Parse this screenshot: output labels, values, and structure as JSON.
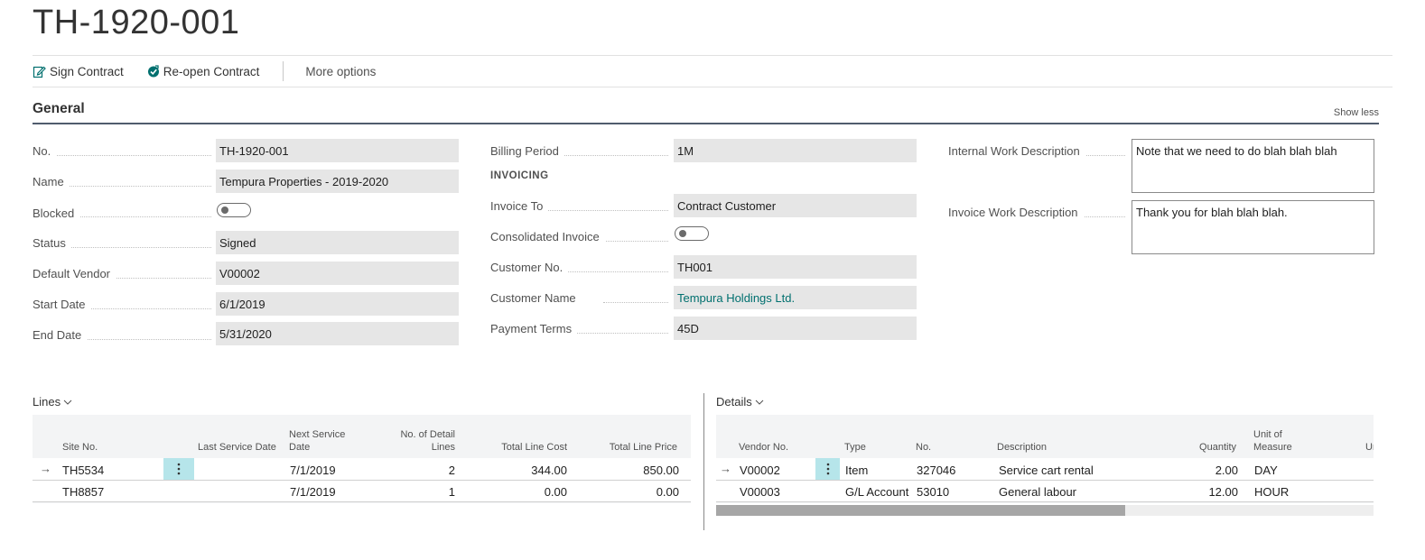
{
  "page": {
    "title": "TH-1920-001"
  },
  "actions": {
    "sign_contract": "Sign Contract",
    "reopen_contract": "Re-open Contract",
    "more_options": "More options"
  },
  "general": {
    "title": "General",
    "show_less": "Show less",
    "left": {
      "no": {
        "label": "No.",
        "value": "TH-1920-001"
      },
      "name": {
        "label": "Name",
        "value": "Tempura Properties - 2019-2020"
      },
      "blocked": {
        "label": "Blocked",
        "value": false
      },
      "status": {
        "label": "Status",
        "value": "Signed"
      },
      "default_vendor": {
        "label": "Default Vendor",
        "value": "V00002"
      },
      "start_date": {
        "label": "Start Date",
        "value": "6/1/2019"
      },
      "end_date": {
        "label": "End Date",
        "value": "5/31/2020"
      }
    },
    "middle": {
      "billing_period": {
        "label": "Billing Period",
        "value": "1M"
      },
      "invoicing_header": "INVOICING",
      "invoice_to": {
        "label": "Invoice To",
        "value": "Contract Customer"
      },
      "consolidated_invoice": {
        "label": "Consolidated Invoice",
        "value": false
      },
      "customer_no": {
        "label": "Customer No.",
        "value": "TH001"
      },
      "customer_name": {
        "label": "Customer Name",
        "value": "Tempura Holdings Ltd."
      },
      "payment_terms": {
        "label": "Payment Terms",
        "value": "45D"
      }
    },
    "right": {
      "internal_work_description": {
        "label": "Internal Work Description",
        "value": "Note that we need to do blah blah blah"
      },
      "invoice_work_description": {
        "label": "Invoice Work Description",
        "value": "Thank you for blah blah blah."
      }
    }
  },
  "lines": {
    "title": "Lines",
    "headers": {
      "site_no": "Site No.",
      "last_service_date": "Last Service Date",
      "next_service_date_1": "Next Service",
      "next_service_date_2": "Date",
      "no_detail_lines_1": "No. of Detail",
      "no_detail_lines_2": "Lines",
      "total_line_cost": "Total Line Cost",
      "total_line_price": "Total Line Price"
    },
    "rows": [
      {
        "site_no": "TH5534",
        "last_service_date": "",
        "next_service_date": "7/1/2019",
        "no_detail_lines": "2",
        "total_line_cost": "344.00",
        "total_line_price": "850.00",
        "selected": true
      },
      {
        "site_no": "TH8857",
        "last_service_date": "",
        "next_service_date": "7/1/2019",
        "no_detail_lines": "1",
        "total_line_cost": "0.00",
        "total_line_price": "0.00",
        "selected": false
      }
    ]
  },
  "details": {
    "title": "Details",
    "headers": {
      "vendor_no": "Vendor No.",
      "type": "Type",
      "no": "No.",
      "description": "Description",
      "quantity": "Quantity",
      "uom_1": "Unit of",
      "uom_2": "Measure",
      "next_col": "Ur"
    },
    "rows": [
      {
        "vendor_no": "V00002",
        "type": "Item",
        "no": "327046",
        "description": "Service cart rental",
        "quantity": "2.00",
        "uom": "DAY",
        "selected": true
      },
      {
        "vendor_no": "V00003",
        "type": "G/L Account",
        "no": "53010",
        "description": "General labour",
        "quantity": "12.00",
        "uom": "HOUR",
        "selected": false
      }
    ],
    "scroll_position": 0.0
  },
  "colors": {
    "accent": "#00706f",
    "field_bg": "#e6e6e6",
    "selection": "#b6e5ea"
  }
}
